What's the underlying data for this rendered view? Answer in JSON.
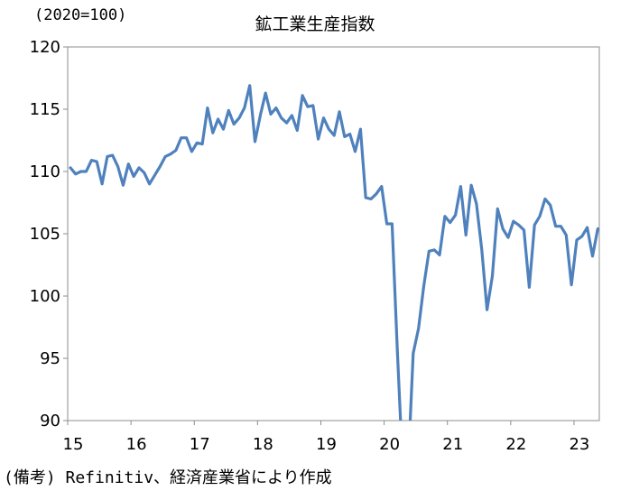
{
  "unit_label": "(2020=100)",
  "source": "(備考) Refinitiv、経済産業省により作成",
  "chart_data": {
    "type": "line",
    "title": "鉱工業生産指数",
    "xlabel": "",
    "ylabel": "",
    "ylim": [
      90,
      120
    ],
    "yticks": [
      90,
      95,
      100,
      105,
      110,
      115,
      120
    ],
    "xtick_labels": [
      "15",
      "16",
      "17",
      "18",
      "19",
      "20",
      "21",
      "22",
      "23"
    ],
    "grid": false,
    "legend": "none",
    "line_color": "#4F81BD",
    "series": [
      {
        "start": "2015-01",
        "values": [
          110.3,
          109.8,
          110.0,
          110.0,
          110.9,
          110.8,
          109.0,
          111.2,
          111.3,
          110.4,
          108.9,
          110.6,
          109.6,
          110.3,
          109.9,
          109.0,
          109.7,
          110.4,
          111.2,
          111.4,
          111.7,
          112.7,
          112.7,
          111.6,
          112.3,
          112.2,
          115.1,
          113.1,
          114.2,
          113.4,
          114.9,
          113.8,
          114.3,
          115.1,
          116.9,
          112.4,
          114.5,
          116.3,
          114.6,
          115.1,
          114.3,
          113.9,
          114.5,
          113.3,
          116.1,
          115.2,
          115.3,
          112.6,
          114.3,
          113.4,
          112.9,
          114.8,
          112.8,
          113.0,
          111.6,
          113.4,
          107.9,
          107.8,
          108.2,
          108.8,
          105.8,
          105.8,
          95.5,
          86.3,
          86.0,
          95.4,
          97.4,
          100.8,
          103.6,
          103.7,
          103.3,
          106.4,
          105.9,
          106.5,
          108.8,
          104.9,
          108.9,
          107.4,
          103.7,
          98.9,
          101.6,
          107.0,
          105.4,
          104.7,
          106.0,
          105.7,
          105.3,
          100.7,
          105.7,
          106.4,
          107.8,
          107.3,
          105.6,
          105.6,
          104.9,
          100.9,
          104.5,
          104.8,
          105.5,
          103.2,
          105.4
        ]
      }
    ]
  }
}
